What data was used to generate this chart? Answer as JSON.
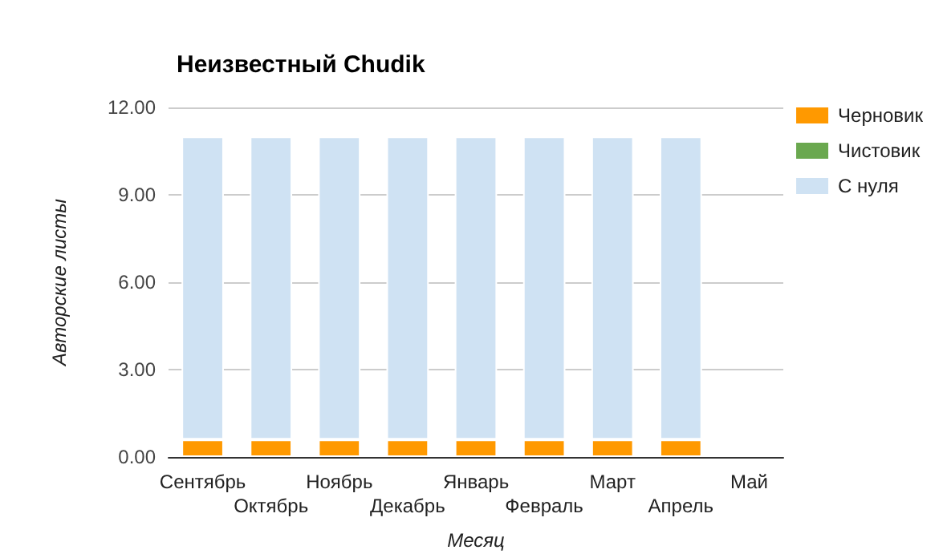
{
  "chart_data": {
    "type": "bar",
    "title": "Неизвестный Chudik",
    "xlabel": "Месяц",
    "ylabel": "Авторские листы",
    "categories": [
      "Сентябрь",
      "Октябрь",
      "Ноябрь",
      "Декабрь",
      "Январь",
      "Февраль",
      "Март",
      "Апрель",
      "Май"
    ],
    "stacked": true,
    "series": [
      {
        "name": "Черновик",
        "color": "#ff9900",
        "values": [
          0.6,
          0.6,
          0.6,
          0.6,
          0.6,
          0.6,
          0.6,
          0.6,
          null
        ]
      },
      {
        "name": "Чистовик",
        "color": "#6aa84f",
        "values": [
          0,
          0,
          0,
          0,
          0,
          0,
          0,
          0,
          null
        ]
      },
      {
        "name": "С нуля",
        "color": "#cfe2f3",
        "values": [
          10.4,
          10.4,
          10.4,
          10.4,
          10.4,
          10.4,
          10.4,
          10.4,
          null
        ]
      }
    ],
    "ylim": [
      0,
      12
    ],
    "yticks": [
      {
        "value": 0,
        "label": "0.00"
      },
      {
        "value": 3,
        "label": "3.00"
      },
      {
        "value": 6,
        "label": "6.00"
      },
      {
        "value": 9,
        "label": "9.00"
      },
      {
        "value": 12,
        "label": "12.00"
      }
    ],
    "grid": "y",
    "legend": "right"
  }
}
